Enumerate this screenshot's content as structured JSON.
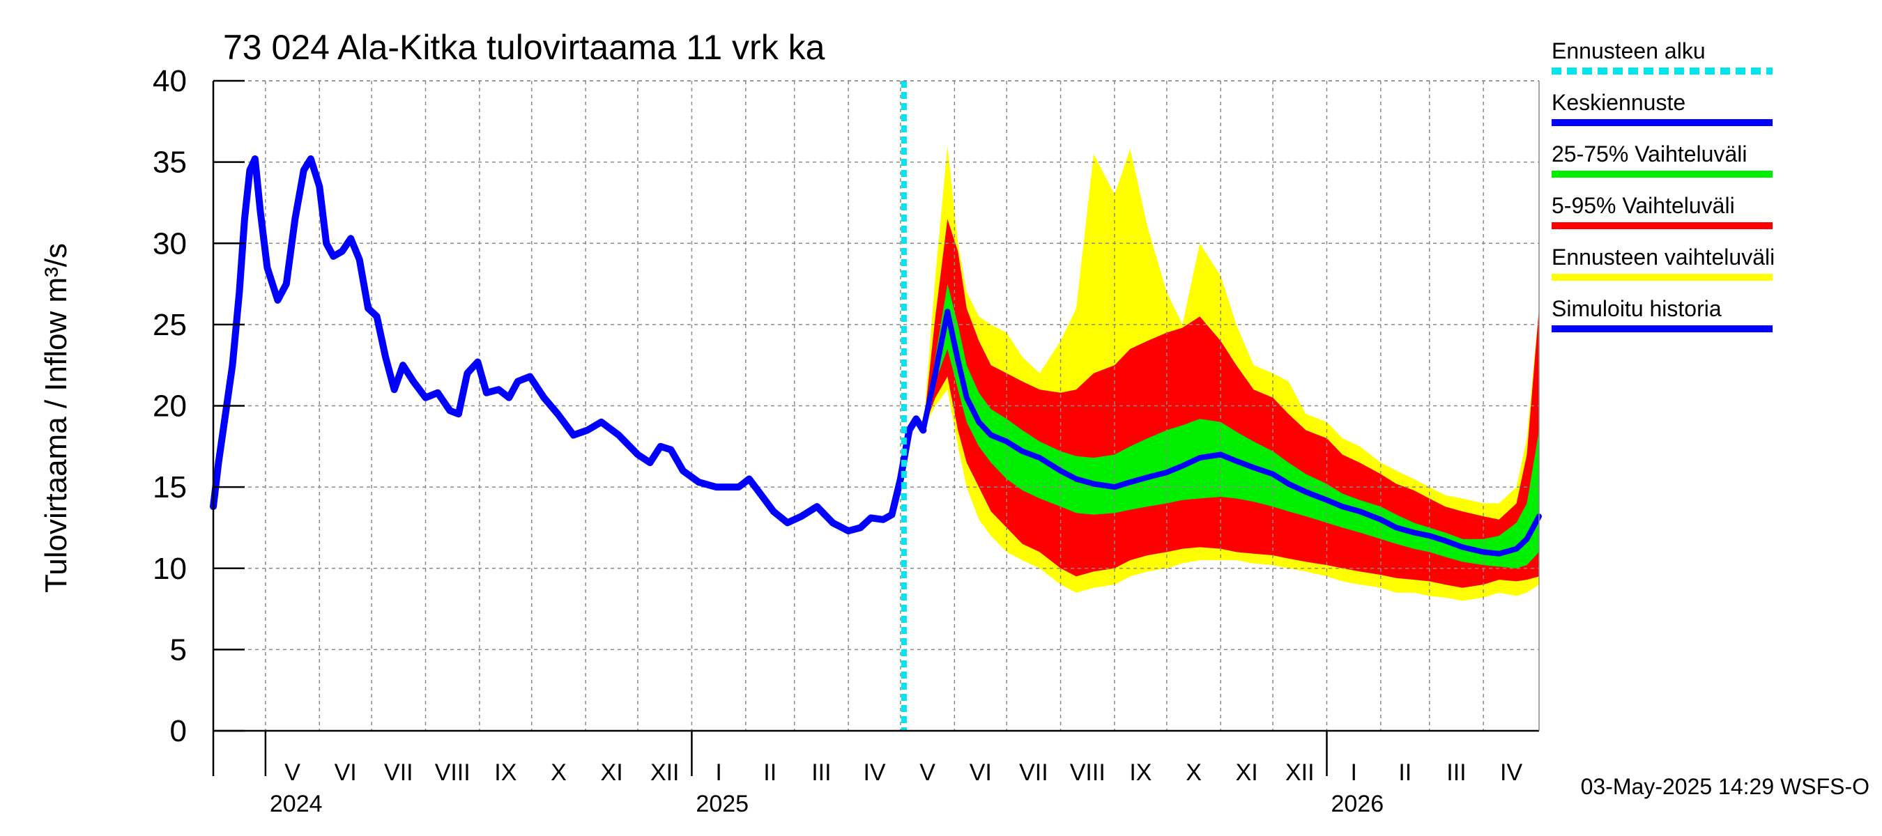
{
  "chart_data": {
    "type": "area",
    "title": "73 024 Ala-Kitka tulovirtaama 11 vrk ka",
    "ylabel": "Tulovirtaama / Inflow    m³/s",
    "ylim": [
      0,
      40
    ],
    "yticks": [
      "0",
      "5",
      "10",
      "15",
      "20",
      "25",
      "30",
      "35",
      "40"
    ],
    "xlim": [
      "2024-04-01",
      "2026-05-03"
    ],
    "x_unit": "date",
    "month_labels": [
      {
        "label": "V",
        "date": "2024-05-01"
      },
      {
        "label": "VI",
        "date": "2024-06-01"
      },
      {
        "label": "VII",
        "date": "2024-07-01"
      },
      {
        "label": "VIII",
        "date": "2024-08-01"
      },
      {
        "label": "IX",
        "date": "2024-09-01"
      },
      {
        "label": "X",
        "date": "2024-10-01"
      },
      {
        "label": "XI",
        "date": "2024-11-01"
      },
      {
        "label": "XII",
        "date": "2024-12-01"
      },
      {
        "label": "I",
        "date": "2025-01-01"
      },
      {
        "label": "II",
        "date": "2025-02-01"
      },
      {
        "label": "III",
        "date": "2025-03-01"
      },
      {
        "label": "IV",
        "date": "2025-04-01"
      },
      {
        "label": "V",
        "date": "2025-05-01"
      },
      {
        "label": "VI",
        "date": "2025-06-01"
      },
      {
        "label": "VII",
        "date": "2025-07-01"
      },
      {
        "label": "VIII",
        "date": "2025-08-01"
      },
      {
        "label": "IX",
        "date": "2025-09-01"
      },
      {
        "label": "X",
        "date": "2025-10-01"
      },
      {
        "label": "XI",
        "date": "2025-11-01"
      },
      {
        "label": "XII",
        "date": "2025-12-01"
      },
      {
        "label": "I",
        "date": "2026-01-01"
      },
      {
        "label": "II",
        "date": "2026-02-01"
      },
      {
        "label": "III",
        "date": "2026-03-01"
      },
      {
        "label": "IV",
        "date": "2026-04-01"
      }
    ],
    "year_labels": [
      {
        "label": "2024",
        "date": "2024-05-01"
      },
      {
        "label": "2025",
        "date": "2025-01-01"
      },
      {
        "label": "2026",
        "date": "2026-01-01"
      }
    ],
    "forecast_start": "2025-05-03",
    "grid": true,
    "legend_position": "right",
    "colors": {
      "forecast_start": "#00e5ee",
      "median": "#0000ff",
      "p25_75": "#00ee00",
      "p5_95": "#ff0000",
      "ensemble_range": "#ffff00",
      "history": "#0000ff"
    },
    "legend": [
      {
        "label": "Ennusteen alku",
        "key": "forecast_start",
        "style": "dashed"
      },
      {
        "label": "Keskiennuste",
        "key": "median",
        "style": "solid"
      },
      {
        "label": "25-75% Vaihteluväli",
        "key": "p25_75",
        "style": "solid"
      },
      {
        "label": "5-95% Vaihteluväli",
        "key": "p5_95",
        "style": "solid"
      },
      {
        "label": "Ennusteen vaihteluväli",
        "key": "ensemble_range",
        "style": "solid"
      },
      {
        "label": "Simuloitu historia",
        "key": "history",
        "style": "solid"
      }
    ],
    "history": [
      [
        "2024-04-01",
        13.8
      ],
      [
        "2024-04-04",
        16.5
      ],
      [
        "2024-04-08",
        19.5
      ],
      [
        "2024-04-12",
        22.5
      ],
      [
        "2024-04-16",
        27.0
      ],
      [
        "2024-04-19",
        31.5
      ],
      [
        "2024-04-22",
        34.5
      ],
      [
        "2024-04-25",
        35.2
      ],
      [
        "2024-04-28",
        32.0
      ],
      [
        "2024-05-02",
        28.5
      ],
      [
        "2024-05-08",
        26.5
      ],
      [
        "2024-05-13",
        27.5
      ],
      [
        "2024-05-18",
        31.5
      ],
      [
        "2024-05-23",
        34.5
      ],
      [
        "2024-05-27",
        35.2
      ],
      [
        "2024-06-01",
        33.5
      ],
      [
        "2024-06-05",
        30.0
      ],
      [
        "2024-06-09",
        29.2
      ],
      [
        "2024-06-14",
        29.5
      ],
      [
        "2024-06-19",
        30.3
      ],
      [
        "2024-06-24",
        29.0
      ],
      [
        "2024-06-29",
        26.0
      ],
      [
        "2024-07-04",
        25.5
      ],
      [
        "2024-07-09",
        23.0
      ],
      [
        "2024-07-14",
        21.0
      ],
      [
        "2024-07-19",
        22.5
      ],
      [
        "2024-07-25",
        21.5
      ],
      [
        "2024-08-01",
        20.5
      ],
      [
        "2024-08-08",
        20.8
      ],
      [
        "2024-08-15",
        19.7
      ],
      [
        "2024-08-20",
        19.5
      ],
      [
        "2024-08-25",
        22.0
      ],
      [
        "2024-08-31",
        22.7
      ],
      [
        "2024-09-05",
        20.8
      ],
      [
        "2024-09-12",
        21.0
      ],
      [
        "2024-09-18",
        20.5
      ],
      [
        "2024-09-23",
        21.5
      ],
      [
        "2024-09-30",
        21.8
      ],
      [
        "2024-10-08",
        20.5
      ],
      [
        "2024-10-16",
        19.5
      ],
      [
        "2024-10-25",
        18.2
      ],
      [
        "2024-11-02",
        18.5
      ],
      [
        "2024-11-10",
        19.0
      ],
      [
        "2024-11-20",
        18.2
      ],
      [
        "2024-12-01",
        17.0
      ],
      [
        "2024-12-08",
        16.5
      ],
      [
        "2024-12-14",
        17.5
      ],
      [
        "2024-12-20",
        17.3
      ],
      [
        "2024-12-27",
        16.0
      ],
      [
        "2025-01-05",
        15.3
      ],
      [
        "2025-01-15",
        15.0
      ],
      [
        "2025-01-28",
        15.0
      ],
      [
        "2025-02-03",
        15.5
      ],
      [
        "2025-02-10",
        14.5
      ],
      [
        "2025-02-17",
        13.5
      ],
      [
        "2025-02-25",
        12.8
      ],
      [
        "2025-03-05",
        13.2
      ],
      [
        "2025-03-14",
        13.8
      ],
      [
        "2025-03-23",
        12.8
      ],
      [
        "2025-04-01",
        12.3
      ],
      [
        "2025-04-08",
        12.5
      ],
      [
        "2025-04-14",
        13.1
      ],
      [
        "2025-04-21",
        13.0
      ],
      [
        "2025-04-26",
        13.3
      ],
      [
        "2025-05-01",
        15.5
      ],
      [
        "2025-05-06",
        18.5
      ],
      [
        "2025-05-10",
        19.2
      ],
      [
        "2025-05-14",
        18.5
      ]
    ],
    "forecast": {
      "x": [
        "2025-05-14",
        "2025-05-21",
        "2025-05-28",
        "2025-06-03",
        "2025-06-08",
        "2025-06-15",
        "2025-06-22",
        "2025-07-01",
        "2025-07-10",
        "2025-07-20",
        "2025-08-01",
        "2025-08-10",
        "2025-08-20",
        "2025-09-01",
        "2025-09-10",
        "2025-09-20",
        "2025-10-01",
        "2025-10-10",
        "2025-10-20",
        "2025-11-01",
        "2025-11-10",
        "2025-11-20",
        "2025-12-01",
        "2025-12-10",
        "2025-12-20",
        "2026-01-01",
        "2026-01-10",
        "2026-01-20",
        "2026-02-01",
        "2026-02-10",
        "2026-02-20",
        "2026-03-01",
        "2026-03-10",
        "2026-03-20",
        "2026-04-01",
        "2026-04-10",
        "2026-04-20",
        "2026-04-26",
        "2026-05-03"
      ],
      "min": [
        18.5,
        20.0,
        21.0,
        17.5,
        15.0,
        13.0,
        12.0,
        11.0,
        10.5,
        10.0,
        9.0,
        8.5,
        8.8,
        9.0,
        9.5,
        9.8,
        10.0,
        10.3,
        10.5,
        10.5,
        10.5,
        10.3,
        10.2,
        10.0,
        9.8,
        9.5,
        9.2,
        9.0,
        8.8,
        8.5,
        8.5,
        8.3,
        8.2,
        8.0,
        8.2,
        8.5,
        8.3,
        8.5,
        9.0
      ],
      "p5": [
        18.5,
        20.5,
        21.8,
        18.5,
        16.5,
        15.0,
        13.5,
        12.5,
        11.5,
        11.0,
        10.0,
        9.5,
        9.8,
        10.0,
        10.5,
        10.8,
        11.0,
        11.2,
        11.3,
        11.2,
        11.0,
        10.9,
        10.8,
        10.6,
        10.4,
        10.2,
        10.0,
        9.8,
        9.6,
        9.4,
        9.3,
        9.2,
        9.0,
        8.8,
        9.0,
        9.3,
        9.2,
        9.3,
        9.5
      ],
      "p25": [
        18.5,
        21.5,
        23.5,
        21.0,
        19.0,
        17.5,
        16.5,
        15.5,
        14.8,
        14.3,
        13.8,
        13.4,
        13.3,
        13.4,
        13.6,
        13.8,
        14.0,
        14.2,
        14.3,
        14.4,
        14.3,
        14.1,
        13.8,
        13.5,
        13.2,
        12.8,
        12.5,
        12.2,
        11.8,
        11.5,
        11.2,
        11.0,
        10.7,
        10.4,
        10.2,
        10.1,
        10.0,
        10.2,
        11.0
      ],
      "median": [
        18.5,
        22.0,
        25.8,
        22.8,
        20.5,
        19.0,
        18.2,
        17.8,
        17.2,
        16.8,
        16.0,
        15.5,
        15.2,
        15.0,
        15.3,
        15.6,
        15.9,
        16.3,
        16.8,
        17.0,
        16.6,
        16.2,
        15.8,
        15.2,
        14.7,
        14.2,
        13.8,
        13.5,
        13.0,
        12.5,
        12.2,
        12.0,
        11.7,
        11.3,
        11.0,
        10.9,
        11.2,
        11.8,
        13.2
      ],
      "p75": [
        18.5,
        23.0,
        27.5,
        25.0,
        22.5,
        20.8,
        19.8,
        19.2,
        18.5,
        17.8,
        17.2,
        16.9,
        16.8,
        17.0,
        17.5,
        18.0,
        18.5,
        18.8,
        19.2,
        19.0,
        18.4,
        17.8,
        17.2,
        16.5,
        15.8,
        15.2,
        14.6,
        14.2,
        13.8,
        13.3,
        12.8,
        12.5,
        12.2,
        11.8,
        11.8,
        12.0,
        12.8,
        14.0,
        18.5
      ],
      "p95": [
        18.5,
        25.5,
        31.5,
        29.5,
        26.0,
        24.0,
        22.5,
        22.0,
        21.5,
        21.0,
        20.8,
        21.0,
        22.0,
        22.5,
        23.5,
        24.0,
        24.5,
        24.8,
        25.5,
        24.0,
        22.5,
        21.0,
        20.5,
        19.5,
        18.5,
        18.0,
        17.0,
        16.5,
        15.8,
        15.2,
        14.8,
        14.3,
        13.8,
        13.5,
        13.2,
        13.0,
        14.0,
        17.0,
        26.0
      ],
      "max": [
        18.5,
        28.0,
        36.0,
        30.0,
        27.0,
        25.5,
        25.0,
        24.5,
        23.0,
        22.0,
        24.0,
        26.0,
        35.5,
        33.0,
        35.8,
        31.0,
        27.0,
        25.0,
        30.0,
        28.0,
        25.0,
        22.5,
        22.0,
        21.5,
        19.5,
        19.0,
        18.0,
        17.5,
        16.5,
        16.0,
        15.5,
        15.0,
        14.5,
        14.3,
        14.0,
        14.0,
        15.0,
        18.0,
        26.0
      ]
    }
  },
  "footer": {
    "timestamp": "03-May-2025 14:29 WSFS-O"
  }
}
